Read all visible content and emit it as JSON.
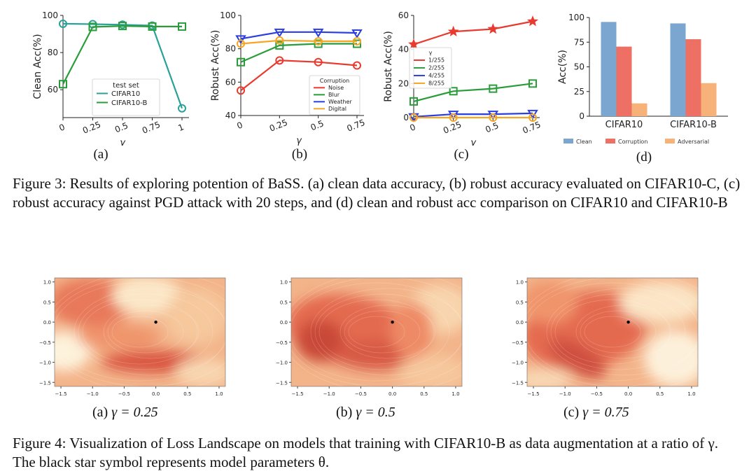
{
  "figure3": {
    "charts": [
      {
        "type": "line",
        "sublabel": "(a)",
        "xlabel": "γ",
        "ylabel": "Clean Acc(%)",
        "x": [
          0,
          0.25,
          0.5,
          0.75,
          1
        ],
        "xticks": [
          "0",
          "0.25",
          "0.5",
          "0.75",
          "1"
        ],
        "ylim": [
          45,
          100
        ],
        "yticks": [
          60,
          80,
          100
        ],
        "legend": {
          "title": "test set",
          "position": "lower-center"
        },
        "series": [
          {
            "name": "CIFAR10",
            "color": "#2aa198",
            "marker": "o",
            "values": [
              95.5,
              95.3,
              95.0,
              94.5,
              50
            ]
          },
          {
            "name": "CIFAR10-B",
            "color": "#2a9d3a",
            "marker": "s",
            "values": [
              63,
              93.8,
              94.3,
              94.0,
              94.0
            ]
          }
        ]
      },
      {
        "type": "line",
        "sublabel": "(b)",
        "xlabel": "γ",
        "ylabel": "Robust Acc(%)",
        "x": [
          0,
          0.25,
          0.5,
          0.75
        ],
        "xticks": [
          "0",
          "0.25",
          "0.5",
          "0.75"
        ],
        "ylim": [
          40,
          100
        ],
        "yticks": [
          40,
          60,
          80,
          100
        ],
        "legend": {
          "title": "Corruption",
          "position": "lower-right"
        },
        "series": [
          {
            "name": "Noise",
            "color": "#e83a2e",
            "marker": "o",
            "values": [
              55,
              73,
              72,
              70
            ]
          },
          {
            "name": "Blur",
            "color": "#2a9d3a",
            "marker": "s",
            "values": [
              72,
              82,
              83,
              83
            ]
          },
          {
            "name": "Weather",
            "color": "#2b3fe0",
            "marker": "v",
            "values": [
              86,
              90,
              90,
              89.5
            ]
          },
          {
            "name": "Digital",
            "color": "#f5a623",
            "marker": "o",
            "values": [
              83,
              85,
              84.5,
              84.5
            ]
          }
        ]
      },
      {
        "type": "line",
        "sublabel": "(c)",
        "xlabel": "γ",
        "ylabel": "Robust Acc(%)",
        "x": [
          0,
          0.25,
          0.5,
          0.75
        ],
        "xticks": [
          "0",
          "0.25",
          "0.5",
          "0.75"
        ],
        "ylim": [
          0,
          60
        ],
        "yticks": [
          0,
          20,
          40,
          60
        ],
        "legend": {
          "title": "γ",
          "position": "middle-left"
        },
        "series": [
          {
            "name": "1/255",
            "color": "#e83a2e",
            "marker": "*",
            "values": [
              43,
              50.5,
              52,
              56.5
            ]
          },
          {
            "name": "2/255",
            "color": "#2a9d3a",
            "marker": "s",
            "values": [
              9.5,
              15.5,
              17,
              20
            ]
          },
          {
            "name": "4/255",
            "color": "#2b3fe0",
            "marker": "v",
            "values": [
              0.5,
              2,
              2,
              2.5
            ]
          },
          {
            "name": "8/255",
            "color": "#f5a623",
            "marker": "o",
            "values": [
              0,
              0,
              0,
              0
            ]
          }
        ]
      },
      {
        "type": "bar",
        "sublabel": "(d)",
        "xlabel": "",
        "ylabel": "Acc(%)",
        "categories": [
          "CIFAR10",
          "CIFAR10-B"
        ],
        "ylim": [
          0,
          100
        ],
        "yticks": [
          0,
          25,
          50,
          75,
          100
        ],
        "legend": {
          "title": "",
          "position": "bottom"
        },
        "series": [
          {
            "name": "Clean",
            "color": "#7aa6d0",
            "values": [
              95.5,
              94
            ]
          },
          {
            "name": "Corruption",
            "color": "#ee6f63",
            "values": [
              70.5,
              78
            ]
          },
          {
            "name": "Adversarial",
            "color": "#f7b27a",
            "values": [
              13,
              33.5
            ]
          }
        ]
      }
    ],
    "caption": "Figure 3: Results of exploring potention of BaSS. (a) clean data accuracy, (b) robust accuracy evaluated on CIFAR10-C, (c) robust accuracy against PGD attack with 20 steps, and (d) clean and robust acc comparison on CIFAR10 and CIFAR10-B"
  },
  "figure4": {
    "panels": [
      {
        "prefix": "(a)",
        "equation": "γ = 0.25"
      },
      {
        "prefix": "(b)",
        "equation": "γ = 0.5"
      },
      {
        "prefix": "(c)",
        "equation": "γ = 0.75"
      }
    ],
    "xticks": [
      "−1.5",
      "−1.0",
      "−0.5",
      "0.0",
      "0.5",
      "1.0"
    ],
    "yticks": [
      "1.0",
      "0.5",
      "0.0",
      "−0.5",
      "−1.0",
      "−1.5"
    ],
    "caption": "Figure 4: Visualization of Loss Landscape on models that training with CIFAR10-B as data augmentation at a ratio of γ. The black star symbol represents model parameters θ."
  }
}
